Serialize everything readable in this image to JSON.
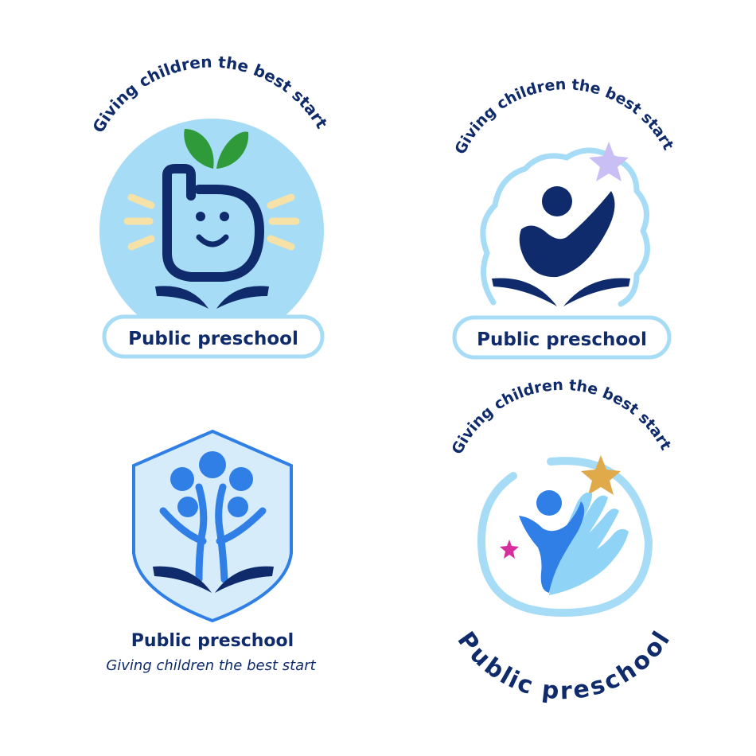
{
  "logos": [
    {
      "tagline": "Giving children the best start",
      "name": "Public preschool"
    },
    {
      "tagline": "Giving children the best start",
      "name": "Public preschool"
    },
    {
      "tagline": "Giving children the best start",
      "name": "Public preschool"
    },
    {
      "tagline": "Giving children the best start",
      "name": "Public preschool"
    }
  ],
  "colors": {
    "navy": "#0f2b6b",
    "light_blue": "#a7dcf6",
    "sky": "#8fd4f6",
    "bright_blue": "#2f7fe6",
    "leaf_green": "#2f9a3a",
    "sun_yellow": "#f6e2a6",
    "star_lavender": "#c9bff4",
    "star_gold": "#e0a94a",
    "star_magenta": "#d62e9c"
  }
}
